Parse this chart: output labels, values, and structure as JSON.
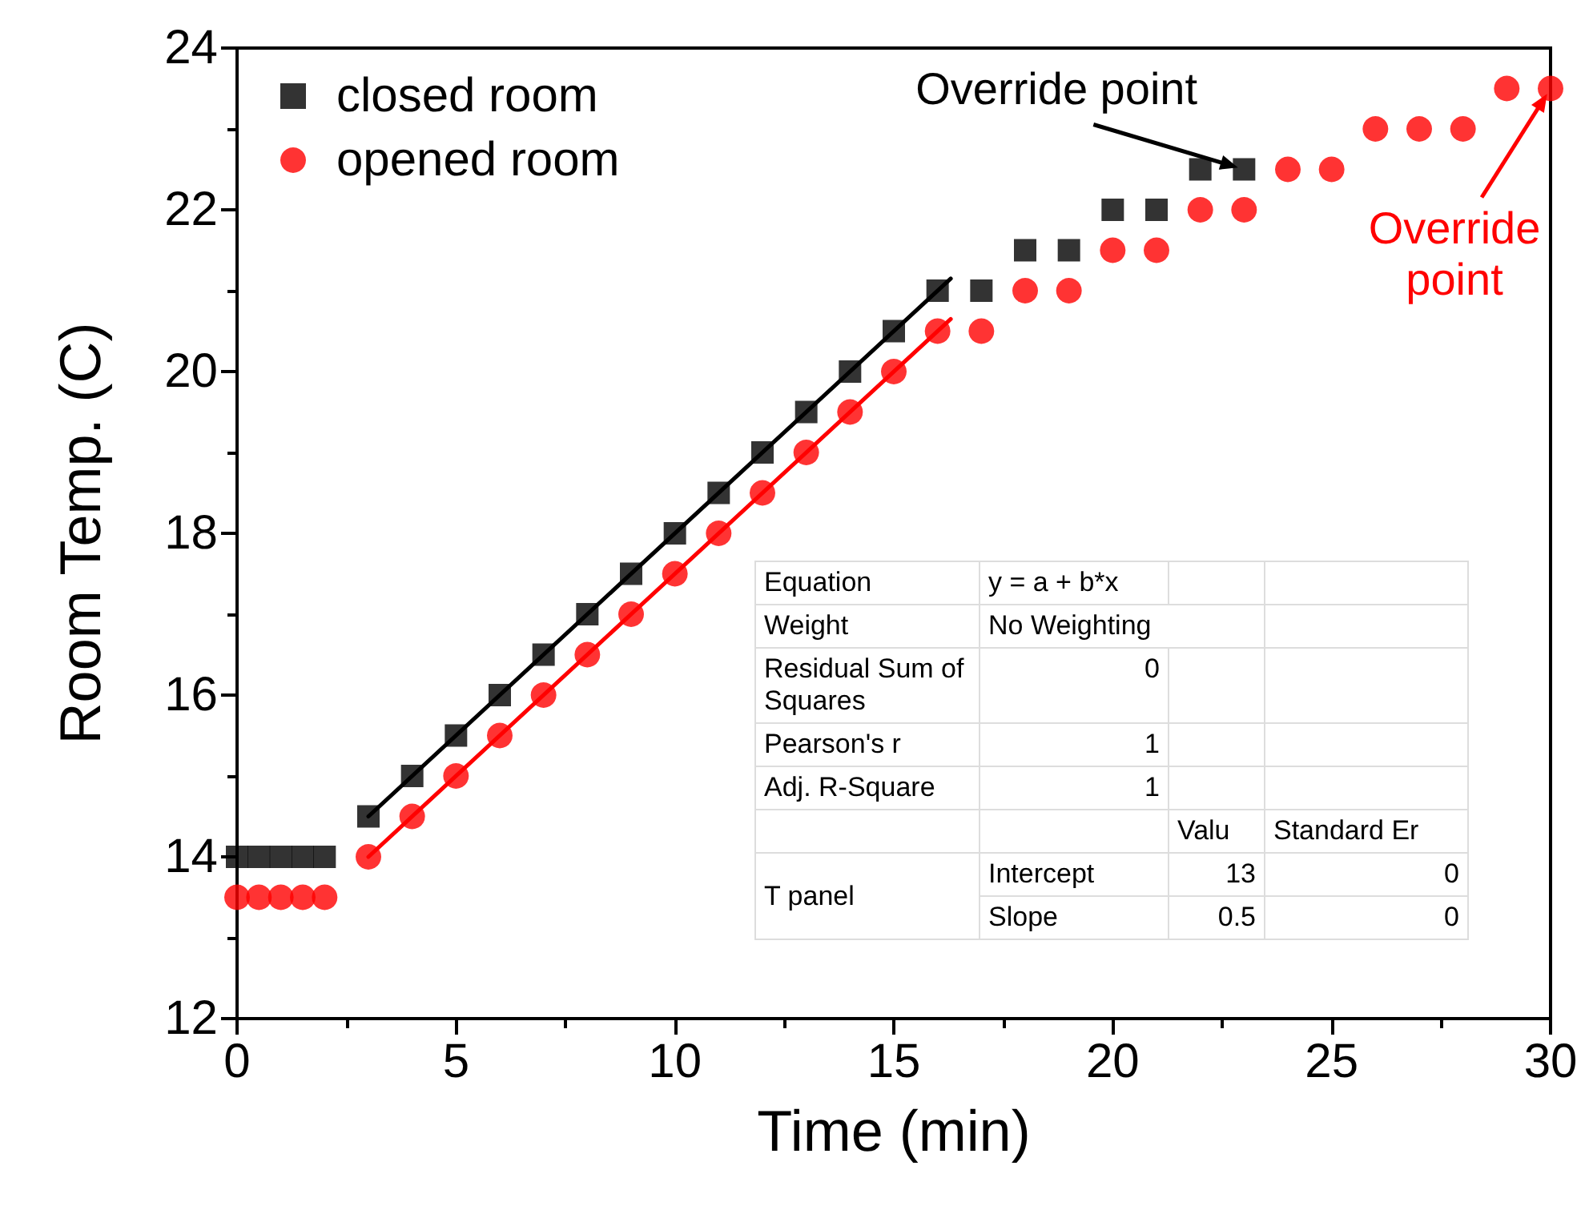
{
  "chart_data": {
    "type": "scatter",
    "xlabel": "Time (min)",
    "ylabel": "Room Temp. (C)",
    "xlim": [
      0,
      30
    ],
    "xticks": [
      0,
      5,
      10,
      15,
      20,
      25,
      30
    ],
    "ylim": [
      12,
      24
    ],
    "yticks": [
      12,
      14,
      16,
      18,
      20,
      22,
      24
    ],
    "grid": false,
    "legend": "top left",
    "series": [
      {
        "name": "closed room",
        "color": "#000000",
        "marker": "square",
        "x": [
          0,
          0.5,
          1,
          1.5,
          2,
          3,
          4,
          5,
          6,
          7,
          8,
          9,
          10,
          11,
          12,
          13,
          14,
          15,
          16,
          17,
          18,
          19,
          20,
          21,
          22,
          23
        ],
        "values": [
          14,
          14,
          14,
          14,
          14,
          14.5,
          15,
          15.5,
          16,
          16.5,
          17,
          17.5,
          18,
          18.5,
          19,
          19.5,
          20,
          20.5,
          21,
          21,
          21.5,
          21.5,
          22,
          22,
          22.5,
          22.5
        ]
      },
      {
        "name": "opened room",
        "color": "#ff0000",
        "marker": "circle",
        "x": [
          0,
          0.5,
          1,
          1.5,
          2,
          3,
          4,
          5,
          6,
          7,
          8,
          9,
          10,
          11,
          12,
          13,
          14,
          15,
          16,
          17,
          18,
          19,
          20,
          21,
          22,
          23,
          24,
          25,
          26,
          27,
          28,
          29,
          30
        ],
        "values": [
          13.5,
          13.5,
          13.5,
          13.5,
          13.5,
          14,
          14.5,
          15,
          15.5,
          16,
          16.5,
          17,
          17.5,
          18,
          18.5,
          19,
          19.5,
          20,
          20.5,
          20.5,
          21,
          21,
          21.5,
          21.5,
          22,
          22,
          22.5,
          22.5,
          23,
          23,
          23,
          23.5,
          23.5
        ]
      },
      {
        "type": "line",
        "color": "#000000",
        "x": [
          3,
          16.3
        ],
        "values": [
          14.5,
          21.15
        ]
      },
      {
        "type": "line",
        "color": "#ff0000",
        "x": [
          3,
          16.3
        ],
        "values": [
          14,
          20.65
        ]
      }
    ],
    "annotations": [
      {
        "text": "Override point",
        "x": 23,
        "y": 22.5
      },
      {
        "text": "Override point",
        "x": 30,
        "y": 23.5
      },
      "Equation",
      "y = a + b*x",
      "Weight",
      "No Weighting",
      "Residual Sum of Squares",
      "0",
      "Pearson's r",
      "1",
      "Adj. R-Square",
      "1",
      "Valu",
      "Standard Er",
      "T panel",
      "Intercept",
      "13",
      "0",
      "Slope",
      "0.5",
      "0"
    ]
  }
}
